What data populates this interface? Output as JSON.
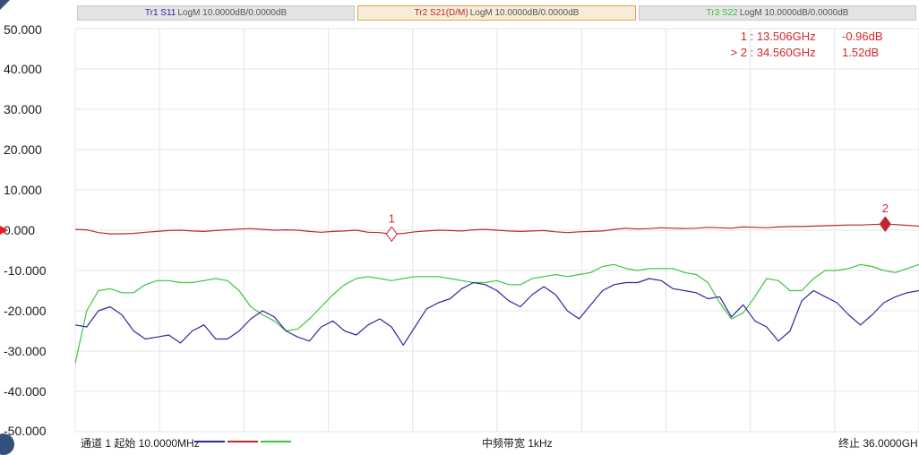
{
  "trace_tabs": [
    {
      "name": "Tr1 S11",
      "settings": "LogM 10.0000dB/0.0000dB",
      "name_color": "#2a2aa0",
      "active": false
    },
    {
      "name": "Tr2 S21(D/M)",
      "settings": "LogM 10.0000dB/0.0000dB",
      "name_color": "#c0272d",
      "active": true
    },
    {
      "name": "Tr3 S22",
      "settings": "LogM 10.0000dB/0.0000dB",
      "name_color": "#3ec43e",
      "active": false
    }
  ],
  "markers": [
    {
      "label": "1",
      "prefix": "1",
      "freq": "13.506GHz",
      "value": "-0.96dB"
    },
    {
      "label": "2",
      "prefix": "> 2",
      "freq": "34.560GHz",
      "value": "1.52dB"
    }
  ],
  "footer": {
    "start": "通道 1 起始 10.0000MHz",
    "ifbw": "中频带宽 1kHz",
    "stop": "终止 36.0000GH"
  },
  "chart_data": {
    "type": "line",
    "xlabel": "",
    "ylabel": "",
    "xlim": [
      0.01,
      36.0
    ],
    "ylim": [
      -50,
      50
    ],
    "y_ticks": [
      "50.000",
      "40.000",
      "30.000",
      "20.000",
      "10.000",
      "0.000",
      "-10.000",
      "-20.000",
      "-30.000",
      "-40.000",
      "-50.000"
    ],
    "reference_level": 0,
    "grid": true,
    "x": [
      0.01,
      0.5,
      1.0,
      1.5,
      2.0,
      2.5,
      3.0,
      3.5,
      4.0,
      4.5,
      5.0,
      5.5,
      6.0,
      6.5,
      7.0,
      7.5,
      8.0,
      8.5,
      9.0,
      9.5,
      10.0,
      10.5,
      11.0,
      11.5,
      12.0,
      12.5,
      13.0,
      13.5,
      14.0,
      14.5,
      15.0,
      15.5,
      16.0,
      16.5,
      17.0,
      17.5,
      18.0,
      18.5,
      19.0,
      19.5,
      20.0,
      20.5,
      21.0,
      21.5,
      22.0,
      22.5,
      23.0,
      23.5,
      24.0,
      24.5,
      25.0,
      25.5,
      26.0,
      26.5,
      27.0,
      27.5,
      28.0,
      28.5,
      29.0,
      29.5,
      30.0,
      30.5,
      31.0,
      31.5,
      32.0,
      32.5,
      33.0,
      33.5,
      34.0,
      34.5,
      35.0,
      35.5,
      36.0
    ],
    "series": [
      {
        "color": "#2a2aa0",
        "values": [
          -23.5,
          -24,
          -20,
          -19,
          -21,
          -25,
          -27,
          -26.5,
          -26,
          -28,
          -25,
          -23.5,
          -27,
          -27,
          -25,
          -22,
          -20,
          -21.5,
          -25,
          -26.5,
          -27.5,
          -24,
          -22.5,
          -25,
          -26,
          -23.5,
          -22,
          -24,
          -28.5,
          -24,
          -19.5,
          -18,
          -17,
          -14.5,
          -13,
          -13.5,
          -15,
          -17.5,
          -19,
          -16,
          -14,
          -16,
          -20,
          -22,
          -18.5,
          -15,
          -13.5,
          -13,
          -13,
          -12,
          -12.5,
          -14.5,
          -15,
          -15.5,
          -17,
          -16.5,
          -21.5,
          -18.5,
          -22.5,
          -24,
          -27.5,
          -25,
          -17.5,
          -15,
          -16.5,
          -18,
          -21,
          -23.5,
          -21,
          -18,
          -16.5,
          -15.5,
          -15
        ]
      },
      {
        "color": "#c0272d",
        "values": [
          0.2,
          0.1,
          -0.6,
          -0.9,
          -0.9,
          -0.8,
          -0.5,
          -0.3,
          -0.1,
          0,
          -0.2,
          -0.3,
          -0.1,
          0.1,
          0.3,
          0.4,
          0.2,
          0,
          0.1,
          0,
          -0.3,
          -0.5,
          -0.3,
          -0.2,
          0,
          -0.5,
          -0.6,
          -0.96,
          -0.8,
          -0.4,
          -0.2,
          0,
          -0.1,
          -0.2,
          0.1,
          0.2,
          0,
          -0.2,
          -0.3,
          -0.2,
          -0.1,
          -0.4,
          -0.6,
          -0.4,
          -0.3,
          -0.2,
          0.2,
          0.5,
          0.3,
          0.4,
          0.6,
          0.5,
          0.4,
          0.5,
          0.7,
          0.6,
          0.5,
          0.8,
          0.7,
          0.6,
          0.8,
          0.9,
          0.9,
          1.0,
          1.1,
          1.2,
          1.3,
          1.3,
          1.4,
          1.52,
          1.4,
          1.2,
          1.0
        ]
      },
      {
        "color": "#3ec43e",
        "values": [
          -33,
          -20,
          -15,
          -14.5,
          -15.5,
          -15.5,
          -13.5,
          -12.5,
          -12.5,
          -13,
          -13,
          -12.5,
          -12,
          -12.5,
          -15,
          -19,
          -21,
          -22.5,
          -25,
          -24.5,
          -22,
          -19,
          -16,
          -13.5,
          -12,
          -11.5,
          -12,
          -12.5,
          -12,
          -11.5,
          -11.5,
          -11.5,
          -12,
          -12.5,
          -13,
          -13,
          -12.5,
          -13.5,
          -13.5,
          -12,
          -11.5,
          -11,
          -11.5,
          -11,
          -10.5,
          -9,
          -8.5,
          -9.5,
          -10,
          -9.5,
          -9.5,
          -9.5,
          -10.5,
          -11,
          -13,
          -18,
          -22,
          -20.5,
          -16.5,
          -12,
          -12.5,
          -15,
          -15,
          -12,
          -10,
          -10,
          -9.5,
          -8.5,
          -9,
          -10,
          -10.5,
          -9.5,
          -8.5
        ]
      }
    ]
  }
}
